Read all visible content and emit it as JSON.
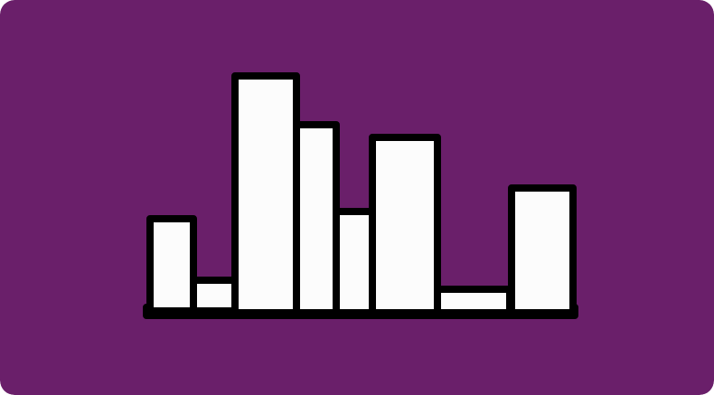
{
  "canvas": {
    "background": "#6a1f6a"
  },
  "icon": {
    "name": "bar-chart-icon",
    "fill": "#fcfcfc",
    "stroke": "#000000"
  }
}
